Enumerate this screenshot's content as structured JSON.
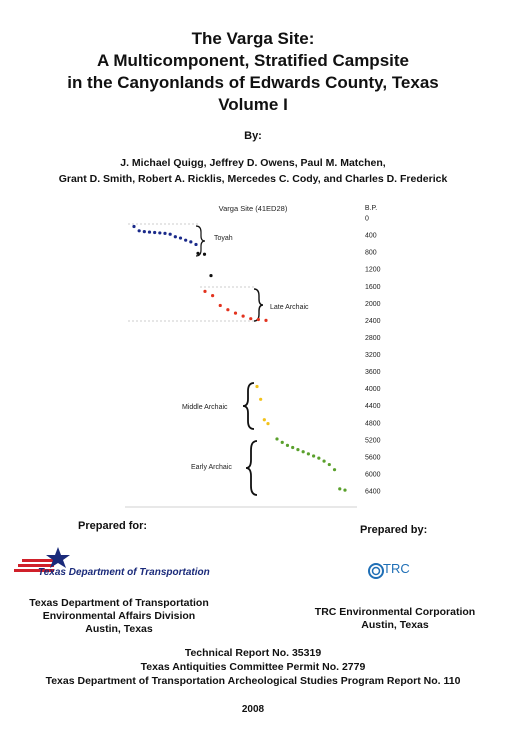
{
  "title": {
    "line1": "The Varga Site:",
    "line2": "A Multicomponent, Stratified Campsite",
    "line3": "in the Canyonlands of Edwards County, Texas",
    "line4": "Volume I"
  },
  "by_label": "By:",
  "authors": {
    "line1": "J. Michael Quigg, Jeffrey D. Owens, Paul M. Matchen,",
    "line2": "Grant D. Smith, Robert A. Ricklis, Mercedes C. Cody, and Charles D. Frederick"
  },
  "chart_data": {
    "type": "scatter",
    "title": "Varga Site (41ED28)",
    "ylabel": "B.P.",
    "ylim": [
      0,
      6600
    ],
    "y_ticks": [
      "0",
      "400",
      "800",
      "1200",
      "1600",
      "2000",
      "2400",
      "2800",
      "3200",
      "3600",
      "4000",
      "4400",
      "4800",
      "5200",
      "5600",
      "6000",
      "6400"
    ],
    "labels": [
      "Toyah",
      "Late Archaic",
      "Middle Archaic",
      "Early Archaic"
    ],
    "series": [
      {
        "name": "Toyah",
        "color": "#1a2a8a",
        "y": [
          200,
          300,
          320,
          330,
          340,
          350,
          360,
          380,
          440,
          470,
          520,
          560,
          620
        ]
      },
      {
        "name": "",
        "color": "#111111",
        "y": [
          830,
          850,
          1350
        ]
      },
      {
        "name": "Late Archaic",
        "color": "#e2331f",
        "y": [
          1720,
          1820,
          2050,
          2150,
          2230,
          2300,
          2360,
          2380,
          2400
        ]
      },
      {
        "name": "Middle Archaic",
        "color": "#f2c21b",
        "y": [
          3950,
          4250,
          4730,
          4820
        ]
      },
      {
        "name": "Early Archaic",
        "color": "#5aa02c",
        "y": [
          5180,
          5260,
          5330,
          5380,
          5430,
          5480,
          5530,
          5580,
          5630,
          5700,
          5780,
          5900,
          6350,
          6380
        ]
      }
    ]
  },
  "prepared_for_label": "Prepared for:",
  "prepared_by_label": "Prepared by:",
  "txdot_logo_text": "Texas Department of Transportation",
  "trc_logo_text": "TRC",
  "txdot_org": {
    "line1": "Texas Department of Transportation",
    "line2": "Environmental Affairs Division",
    "line3": "Austin, Texas"
  },
  "trc_org": {
    "line1": "TRC Environmental Corporation",
    "line2": "Austin, Texas"
  },
  "report": {
    "line1": "Technical Report No. 35319",
    "line2": "Texas Antiquities Committee Permit No. 2779",
    "line3": "Texas Department of Transportation Archeological Studies Program Report No. 110"
  },
  "year": "2008"
}
